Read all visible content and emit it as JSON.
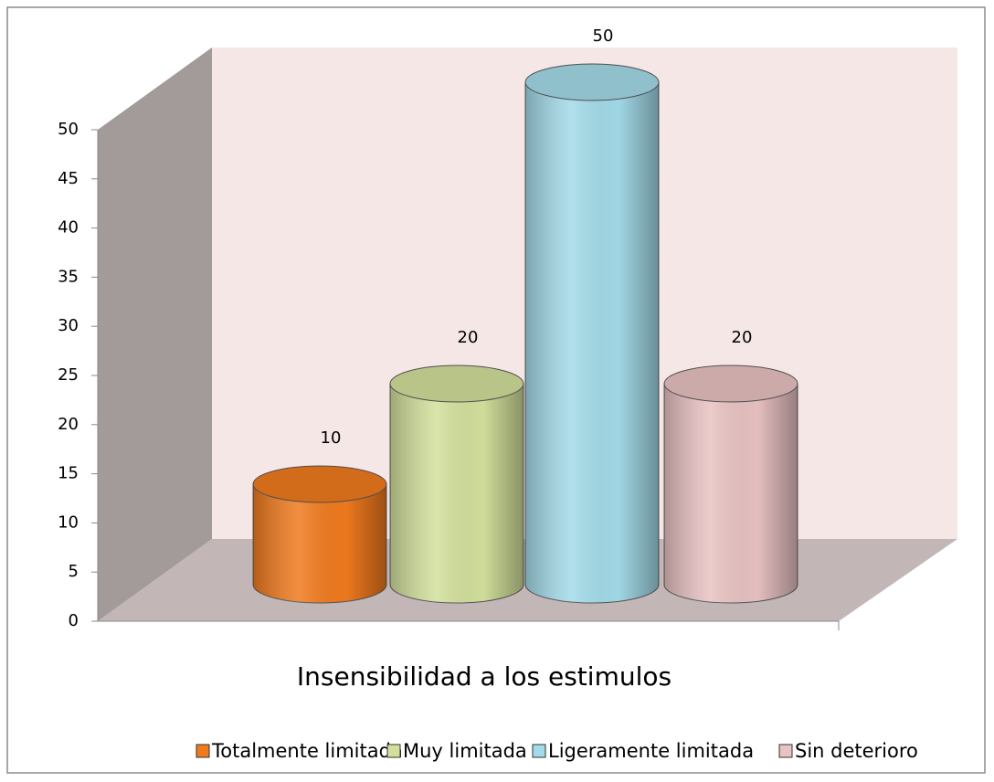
{
  "chart_data": {
    "type": "bar3d",
    "categories": [
      "Insensibilidad a los estimulos"
    ],
    "series": [
      {
        "name": "Totalmente limitada",
        "color": "#f07a1e",
        "values": [
          10
        ]
      },
      {
        "name": "Muy limitada",
        "color": "#d3e09c",
        "values": [
          20
        ]
      },
      {
        "name": "Ligeramente limitada",
        "color": "#a3dbe9",
        "values": [
          50
        ]
      },
      {
        "name": "Sin deterioro",
        "color": "#e9c2c2",
        "values": [
          20
        ]
      }
    ],
    "ylim": [
      0,
      50
    ],
    "yticks": [
      0,
      5,
      10,
      15,
      20,
      25,
      30,
      35,
      40,
      45,
      50
    ],
    "legend": "bottom"
  }
}
